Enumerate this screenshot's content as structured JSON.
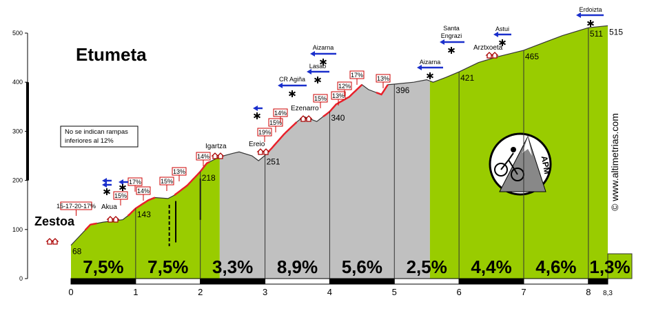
{
  "chart_data": {
    "type": "area",
    "title": "Etumeta",
    "x": [
      0,
      0.3,
      0.5,
      0.8,
      0.9,
      1,
      1.2,
      1.3,
      1.5,
      1.6,
      1.8,
      2,
      2.1,
      2.3,
      2.5,
      2.6,
      2.8,
      2.9,
      3,
      3.1,
      3.3,
      3.5,
      3.6,
      3.8,
      3.9,
      4,
      4.1,
      4.3,
      4.5,
      4.6,
      4.8,
      4.9,
      5,
      5.3,
      5.5,
      5.6,
      5.8,
      6,
      6.3,
      6.6,
      7,
      7.3,
      7.6,
      8,
      8.3
    ],
    "values": [
      68,
      110,
      115,
      120,
      130,
      143,
      160,
      165,
      163,
      170,
      190,
      218,
      235,
      248,
      255,
      258,
      250,
      240,
      251,
      265,
      295,
      320,
      330,
      320,
      330,
      340,
      355,
      370,
      395,
      385,
      375,
      395,
      396,
      400,
      405,
      400,
      410,
      421,
      440,
      452,
      465,
      480,
      495,
      511,
      515
    ],
    "bands": [
      {
        "from": 0,
        "to": 2.3,
        "color": "#99cc00"
      },
      {
        "from": 2.3,
        "to": 5.55,
        "color": "#c0c0c0"
      },
      {
        "from": 5.55,
        "to": 8.3,
        "color": "#99cc00"
      }
    ],
    "xlim": [
      0,
      8.3
    ],
    "xticks": [
      0,
      1,
      2,
      3,
      4,
      5,
      6,
      7,
      8,
      {
        "value": 8.3,
        "label": "8,3"
      }
    ],
    "ylim": [
      0,
      500
    ],
    "yticks": [
      0,
      100,
      200,
      300,
      400,
      500
    ],
    "altitude_labels": [
      68,
      143,
      218,
      251,
      340,
      396,
      421,
      465,
      511,
      515
    ],
    "gradients": [
      "7,5%",
      "7,5%",
      "3,3%",
      "8,9%",
      "5,6%",
      "2,5%",
      "4,4%",
      "4,6%",
      "1,3%"
    ],
    "places": [
      "Zestoa",
      "Akua",
      "Igartza",
      "Ereio",
      "Ezenarro",
      "Arztxoeta"
    ],
    "ramps": [
      "15-17-20-17%",
      "15%",
      "17%",
      "14%",
      "15%",
      "13%",
      "14%",
      "19%",
      "15%",
      "14%",
      "15%",
      "13%",
      "12%",
      "17%",
      "13%"
    ],
    "junctions": [
      [
        "Aizarna"
      ],
      [
        "Lasao"
      ],
      [
        "CR Agiña"
      ],
      [
        "Aizarna"
      ],
      [
        "Santa",
        "Engrazi"
      ],
      [
        "Astui"
      ],
      [
        "Erdoizta"
      ]
    ],
    "note": [
      "No se indican rampas",
      "inferiores al 12%"
    ],
    "logo": "APM",
    "credit": "© www.altimetrias.com"
  }
}
